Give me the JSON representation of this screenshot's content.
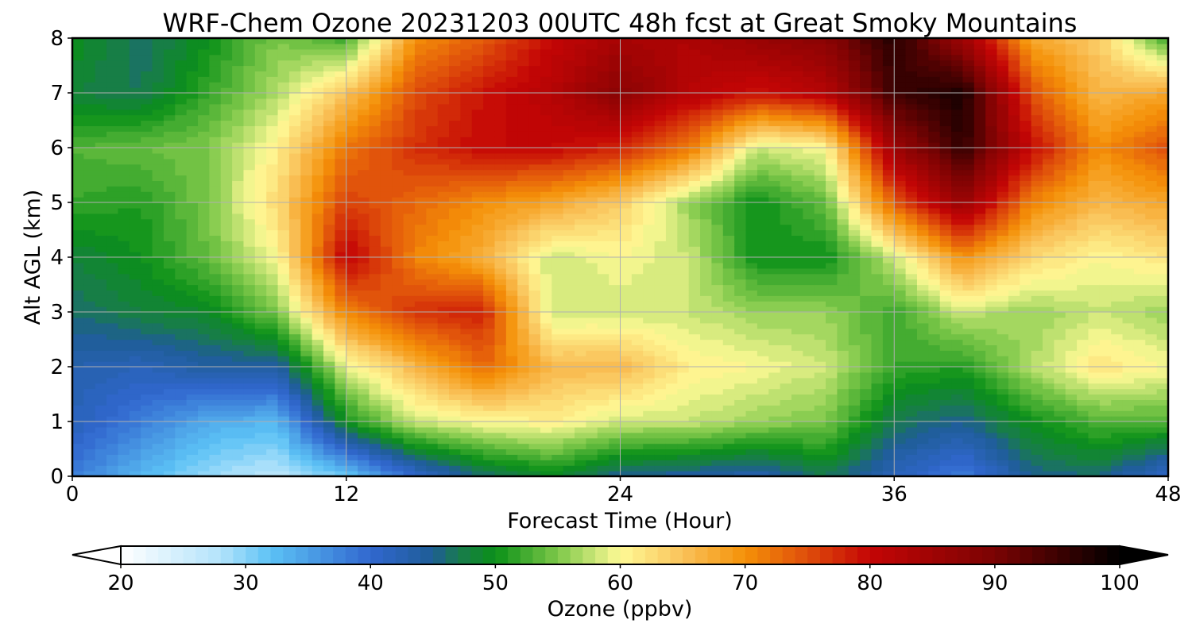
{
  "chart_data": {
    "type": "heatmap",
    "title": "WRF-Chem Ozone  20231203 00UTC 48h fcst at Great Smoky Mountains",
    "xlabel": "Forecast Time (Hour)",
    "ylabel": "Alt AGL (km)",
    "xlim": [
      0,
      48
    ],
    "ylim": [
      0,
      8
    ],
    "x_ticks": [
      0,
      12,
      24,
      36,
      48
    ],
    "x_tick_labels": [
      "0",
      "12",
      "24",
      "36",
      "48"
    ],
    "y_ticks": [
      0,
      1,
      2,
      3,
      4,
      5,
      6,
      7,
      8
    ],
    "y_tick_labels": [
      "0",
      "1",
      "2",
      "3",
      "4",
      "5",
      "6",
      "7",
      "8"
    ],
    "grid": true,
    "x": [
      0,
      3,
      6,
      9,
      12,
      15,
      18,
      21,
      24,
      27,
      30,
      33,
      36,
      39,
      42,
      45,
      48
    ],
    "y": [
      0,
      1,
      2,
      3,
      4,
      5,
      6,
      7,
      8
    ],
    "z": [
      [
        38,
        33,
        29,
        27,
        31,
        40,
        46,
        49,
        45,
        44,
        43,
        47,
        42,
        38,
        45,
        46,
        40
      ],
      [
        42,
        38,
        34,
        33,
        50,
        58,
        60,
        61,
        58,
        58,
        56,
        55,
        47,
        45,
        50,
        53,
        53
      ],
      [
        43,
        42,
        44,
        44,
        59,
        66,
        73,
        66,
        66,
        61,
        60,
        58,
        52,
        51,
        57,
        62,
        60
      ],
      [
        46,
        48,
        49,
        55,
        71,
        77,
        78,
        58,
        58,
        58,
        56,
        56,
        52,
        58,
        56,
        58,
        56
      ],
      [
        48,
        50,
        54,
        60,
        81,
        71,
        67,
        58,
        60,
        58,
        50,
        50,
        58,
        70,
        63,
        60,
        62
      ],
      [
        52,
        51,
        55,
        63,
        76,
        73,
        70,
        68,
        64,
        56,
        50,
        54,
        74,
        86,
        71,
        66,
        68
      ],
      [
        53,
        54,
        55,
        61,
        72,
        77,
        80,
        80,
        78,
        72,
        58,
        60,
        85,
        96,
        80,
        70,
        75
      ],
      [
        48,
        47,
        52,
        57,
        65,
        75,
        79,
        82,
        88,
        82,
        79,
        82,
        95,
        98,
        75,
        66,
        68
      ],
      [
        50,
        46,
        50,
        55,
        52,
        70,
        74,
        80,
        84,
        83,
        86,
        88,
        97,
        85,
        68,
        64,
        52
      ]
    ],
    "colorbar": {
      "label": "Ozone  (ppbv)",
      "min": 20,
      "max": 100,
      "ticks": [
        20,
        30,
        40,
        50,
        60,
        70,
        80,
        90,
        100
      ],
      "tick_labels": [
        "20",
        "30",
        "40",
        "50",
        "60",
        "70",
        "80",
        "90",
        "100"
      ],
      "extend": "both",
      "under_color": "#ffffff",
      "over_color": "#000000",
      "stops": [
        {
          "v": 20,
          "c": "#ffffff"
        },
        {
          "v": 28,
          "c": "#b3e3fb"
        },
        {
          "v": 32,
          "c": "#5cc2f5"
        },
        {
          "v": 40,
          "c": "#3167cf"
        },
        {
          "v": 45,
          "c": "#1e5d96"
        },
        {
          "v": 47,
          "c": "#197a4f"
        },
        {
          "v": 50,
          "c": "#0a9018"
        },
        {
          "v": 55,
          "c": "#7dc849"
        },
        {
          "v": 60,
          "c": "#fffa96"
        },
        {
          "v": 65,
          "c": "#f9c25a"
        },
        {
          "v": 70,
          "c": "#f59108"
        },
        {
          "v": 75,
          "c": "#df4d0b"
        },
        {
          "v": 80,
          "c": "#c40505"
        },
        {
          "v": 90,
          "c": "#7a0303"
        },
        {
          "v": 100,
          "c": "#000000"
        }
      ]
    }
  }
}
